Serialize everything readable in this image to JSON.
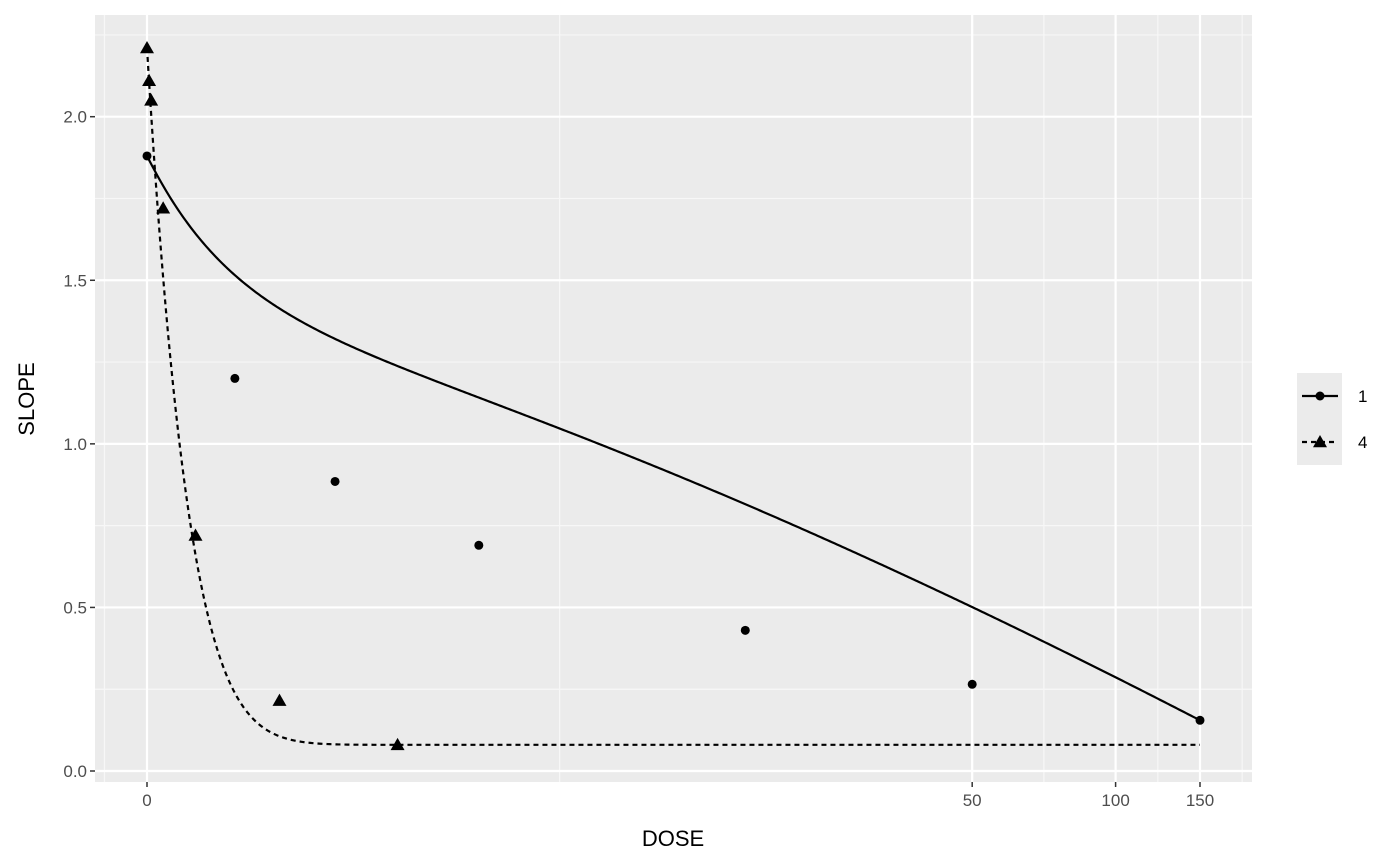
{
  "chart_data": {
    "type": "line",
    "title": "",
    "xlabel": "DOSE",
    "ylabel": "SLOPE",
    "x_scale": "pseudo-log",
    "x_ticks": [
      {
        "value": 0,
        "label": "0"
      },
      {
        "value": 50,
        "label": "50"
      },
      {
        "value": 100,
        "label": "100"
      },
      {
        "value": 150,
        "label": "150"
      }
    ],
    "y_ticks": [
      {
        "value": 0.0,
        "label": "0.0"
      },
      {
        "value": 0.5,
        "label": "0.5"
      },
      {
        "value": 1.0,
        "label": "1.0"
      },
      {
        "value": 1.5,
        "label": "1.5"
      },
      {
        "value": 2.0,
        "label": "2.0"
      }
    ],
    "ylim": [
      -0.03,
      2.32
    ],
    "xlim": [
      -0.4,
      180
    ],
    "grid": true,
    "legend_position": "right",
    "series": [
      {
        "name": "1",
        "marker": "circle",
        "line": "solid",
        "points": [
          [
            0,
            1.88
          ],
          [
            0.52,
            1.2
          ],
          [
            1.45,
            0.885
          ],
          [
            3.86,
            0.69
          ],
          [
            16.3,
            0.43
          ],
          [
            50,
            0.265
          ],
          [
            150,
            0.155
          ]
        ]
      },
      {
        "name": "4",
        "marker": "triangle",
        "line": "dashed",
        "points": [
          [
            0,
            2.21
          ],
          [
            0.01,
            2.11
          ],
          [
            0.02,
            2.05
          ],
          [
            0.08,
            1.72
          ],
          [
            0.26,
            0.72
          ],
          [
            0.88,
            0.215
          ],
          [
            2.3,
            0.08
          ]
        ]
      }
    ],
    "fits": [
      {
        "series": "1",
        "model": "power",
        "a": 1.88,
        "b": 0.98,
        "c": 0.45,
        "d": 0.0
      },
      {
        "series": "4",
        "model": "exponential",
        "base": 0.08,
        "amp": 2.13,
        "rate": 5.0
      }
    ]
  }
}
